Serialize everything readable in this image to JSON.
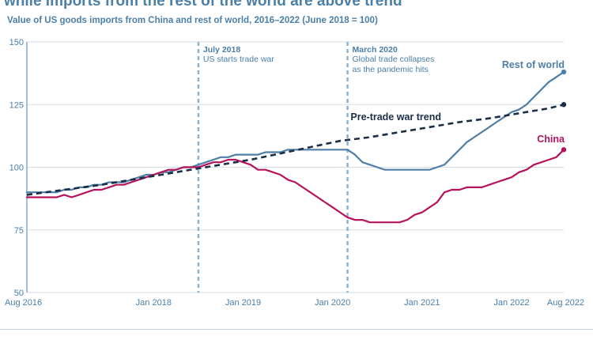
{
  "title": "while imports from the rest of the world are above trend",
  "subtitle": "Value of US goods imports from China and rest of world, 2016–2022 (June 2018 = 100)",
  "colors": {
    "china": "#b5135c",
    "rest_of_world": "#4f7ea8",
    "trend": "#1a2e47",
    "event": "#8fb1cc",
    "axis_text": "#4a7fa8",
    "grid": "#d5dee6"
  },
  "chart_data": {
    "type": "line",
    "title": "while imports from the rest of the world are above trend",
    "subtitle": "Value of US goods imports from China and rest of world, 2016–2022 (June 2018 = 100)",
    "xlabel": "",
    "ylabel": "",
    "xlim": [
      0,
      72
    ],
    "ylim": [
      50,
      150
    ],
    "y_ticks": [
      50,
      75,
      100,
      125,
      150
    ],
    "x_ticks": [
      {
        "label": "Aug 2016",
        "month": 0
      },
      {
        "label": "Jan 2018",
        "month": 17
      },
      {
        "label": "Jan 2019",
        "month": 29
      },
      {
        "label": "Jan 2020",
        "month": 41
      },
      {
        "label": "Jan 2021",
        "month": 53
      },
      {
        "label": "Jan 2022",
        "month": 65
      },
      {
        "label": "Aug 2022",
        "month": 72
      }
    ],
    "events": [
      {
        "month": 23,
        "title": "July 2018",
        "lines": [
          "US starts trade war"
        ]
      },
      {
        "month": 43,
        "title": "March 2020",
        "lines": [
          "Global trade collapses",
          "as the pandemic hits"
        ]
      }
    ],
    "series": [
      {
        "name": "Rest of world",
        "key": "rest_of_world",
        "style": "solid",
        "points": [
          [
            0,
            90
          ],
          [
            2,
            90
          ],
          [
            4,
            90
          ],
          [
            5,
            91
          ],
          [
            6,
            91
          ],
          [
            7,
            92
          ],
          [
            8,
            92
          ],
          [
            9,
            93
          ],
          [
            10,
            93
          ],
          [
            11,
            94
          ],
          [
            12,
            94
          ],
          [
            13,
            94
          ],
          [
            14,
            95
          ],
          [
            15,
            96
          ],
          [
            16,
            97
          ],
          [
            17,
            97
          ],
          [
            18,
            98
          ],
          [
            19,
            98
          ],
          [
            20,
            99
          ],
          [
            21,
            100
          ],
          [
            22,
            100
          ],
          [
            23,
            101
          ],
          [
            24,
            102
          ],
          [
            25,
            103
          ],
          [
            26,
            104
          ],
          [
            27,
            104
          ],
          [
            28,
            105
          ],
          [
            29,
            105
          ],
          [
            30,
            105
          ],
          [
            31,
            105
          ],
          [
            32,
            106
          ],
          [
            33,
            106
          ],
          [
            34,
            106
          ],
          [
            35,
            107
          ],
          [
            36,
            107
          ],
          [
            37,
            107
          ],
          [
            38,
            107
          ],
          [
            39,
            107
          ],
          [
            40,
            107
          ],
          [
            41,
            107
          ],
          [
            42,
            107
          ],
          [
            43,
            107
          ],
          [
            44,
            105
          ],
          [
            45,
            102
          ],
          [
            46,
            101
          ],
          [
            47,
            100
          ],
          [
            48,
            99
          ],
          [
            49,
            99
          ],
          [
            50,
            99
          ],
          [
            51,
            99
          ],
          [
            52,
            99
          ],
          [
            53,
            99
          ],
          [
            54,
            99
          ],
          [
            55,
            100
          ],
          [
            56,
            101
          ],
          [
            57,
            104
          ],
          [
            58,
            107
          ],
          [
            59,
            110
          ],
          [
            60,
            112
          ],
          [
            61,
            114
          ],
          [
            62,
            116
          ],
          [
            63,
            118
          ],
          [
            64,
            120
          ],
          [
            65,
            122
          ],
          [
            66,
            123
          ],
          [
            67,
            125
          ],
          [
            68,
            128
          ],
          [
            69,
            131
          ],
          [
            70,
            134
          ],
          [
            71,
            136
          ],
          [
            72,
            138
          ]
        ]
      },
      {
        "name": "China",
        "key": "china",
        "style": "solid",
        "points": [
          [
            0,
            88
          ],
          [
            2,
            88
          ],
          [
            4,
            88
          ],
          [
            5,
            89
          ],
          [
            6,
            88
          ],
          [
            7,
            89
          ],
          [
            8,
            90
          ],
          [
            9,
            91
          ],
          [
            10,
            91
          ],
          [
            11,
            92
          ],
          [
            12,
            93
          ],
          [
            13,
            93
          ],
          [
            14,
            94
          ],
          [
            15,
            95
          ],
          [
            16,
            96
          ],
          [
            17,
            97
          ],
          [
            18,
            98
          ],
          [
            19,
            99
          ],
          [
            20,
            99
          ],
          [
            21,
            100
          ],
          [
            22,
            100
          ],
          [
            23,
            100
          ],
          [
            24,
            101
          ],
          [
            25,
            102
          ],
          [
            26,
            102
          ],
          [
            27,
            103
          ],
          [
            28,
            103
          ],
          [
            29,
            102
          ],
          [
            30,
            101
          ],
          [
            31,
            99
          ],
          [
            32,
            99
          ],
          [
            33,
            98
          ],
          [
            34,
            97
          ],
          [
            35,
            95
          ],
          [
            36,
            94
          ],
          [
            37,
            92
          ],
          [
            38,
            90
          ],
          [
            39,
            88
          ],
          [
            40,
            86
          ],
          [
            41,
            84
          ],
          [
            42,
            82
          ],
          [
            43,
            80
          ],
          [
            44,
            79
          ],
          [
            45,
            79
          ],
          [
            46,
            78
          ],
          [
            47,
            78
          ],
          [
            48,
            78
          ],
          [
            49,
            78
          ],
          [
            50,
            78
          ],
          [
            51,
            79
          ],
          [
            52,
            81
          ],
          [
            53,
            82
          ],
          [
            54,
            84
          ],
          [
            55,
            86
          ],
          [
            56,
            90
          ],
          [
            57,
            91
          ],
          [
            58,
            91
          ],
          [
            59,
            92
          ],
          [
            60,
            92
          ],
          [
            61,
            92
          ],
          [
            62,
            93
          ],
          [
            63,
            94
          ],
          [
            64,
            95
          ],
          [
            65,
            96
          ],
          [
            66,
            98
          ],
          [
            67,
            99
          ],
          [
            68,
            101
          ],
          [
            69,
            102
          ],
          [
            70,
            103
          ],
          [
            71,
            104
          ],
          [
            72,
            107
          ]
        ]
      },
      {
        "name": "Pre-trade war trend",
        "key": "trend",
        "style": "dashed",
        "points": [
          [
            0,
            89
          ],
          [
            5,
            91
          ],
          [
            10,
            93
          ],
          [
            15,
            95.5
          ],
          [
            20,
            98
          ],
          [
            23,
            99.5
          ],
          [
            26,
            101
          ],
          [
            30,
            103
          ],
          [
            34,
            105.5
          ],
          [
            38,
            108
          ],
          [
            42,
            110.5
          ],
          [
            46,
            112
          ],
          [
            50,
            114
          ],
          [
            54,
            116
          ],
          [
            58,
            118
          ],
          [
            62,
            119.5
          ],
          [
            66,
            121.5
          ],
          [
            70,
            123.5
          ],
          [
            72,
            125
          ]
        ]
      }
    ]
  }
}
